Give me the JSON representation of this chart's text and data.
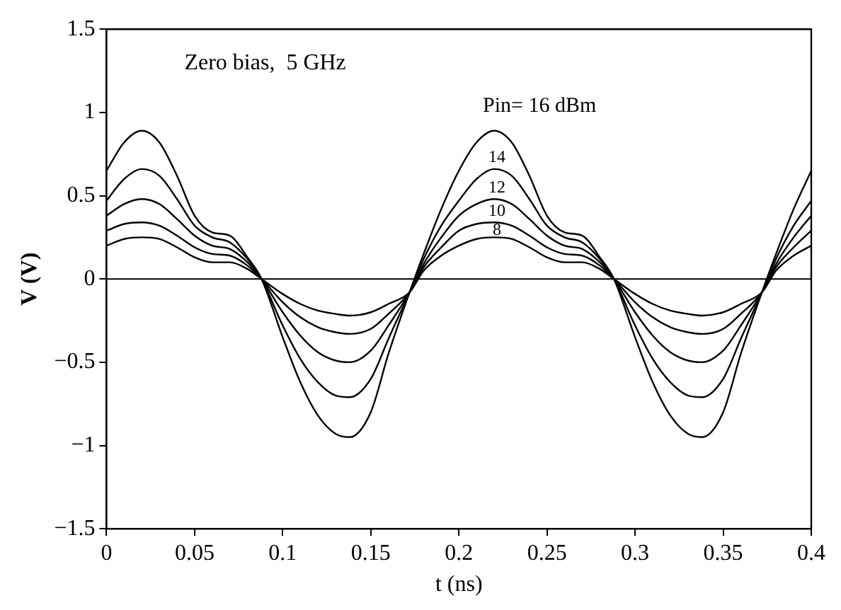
{
  "chart_data": {
    "type": "line",
    "xlabel": "t (ns)",
    "ylabel": "V (V)",
    "annotations": [
      "Zero bias,  5 GHz"
    ],
    "x": [
      0,
      0.01,
      0.02,
      0.03,
      0.04,
      0.05,
      0.06,
      0.07,
      0.08,
      0.088,
      0.1,
      0.11,
      0.12,
      0.13,
      0.138,
      0.15,
      0.16,
      0.172,
      0.18,
      0.19,
      0.2,
      0.21,
      0.22,
      0.23,
      0.24,
      0.25,
      0.26,
      0.27,
      0.28,
      0.288,
      0.3,
      0.31,
      0.32,
      0.33,
      0.338,
      0.35,
      0.36,
      0.372,
      0.38,
      0.39,
      0.4
    ],
    "series": [
      {
        "name": "Pin= 16 dBm",
        "color": "#000000",
        "values": [
          0.65,
          0.82,
          0.89,
          0.82,
          0.62,
          0.38,
          0.28,
          0.26,
          0.13,
          0,
          -0.35,
          -0.62,
          -0.82,
          -0.93,
          -0.95,
          -0.8,
          -0.45,
          -0.08,
          0.15,
          0.42,
          0.65,
          0.82,
          0.89,
          0.82,
          0.62,
          0.38,
          0.28,
          0.26,
          0.13,
          0,
          -0.35,
          -0.62,
          -0.82,
          -0.93,
          -0.95,
          -0.8,
          -0.45,
          -0.08,
          0.15,
          0.42,
          0.65
        ]
      },
      {
        "name": "14",
        "color": "#000000",
        "values": [
          0.47,
          0.6,
          0.66,
          0.62,
          0.48,
          0.32,
          0.25,
          0.22,
          0.12,
          0,
          -0.28,
          -0.48,
          -0.62,
          -0.7,
          -0.71,
          -0.6,
          -0.36,
          -0.08,
          0.12,
          0.32,
          0.47,
          0.6,
          0.66,
          0.62,
          0.48,
          0.32,
          0.25,
          0.22,
          0.12,
          0,
          -0.28,
          -0.48,
          -0.62,
          -0.7,
          -0.71,
          -0.6,
          -0.36,
          -0.08,
          0.12,
          0.32,
          0.47
        ]
      },
      {
        "name": "12",
        "color": "#000000",
        "values": [
          0.38,
          0.45,
          0.48,
          0.45,
          0.36,
          0.26,
          0.2,
          0.18,
          0.1,
          0,
          -0.2,
          -0.34,
          -0.44,
          -0.49,
          -0.5,
          -0.43,
          -0.28,
          -0.08,
          0.09,
          0.25,
          0.38,
          0.45,
          0.48,
          0.45,
          0.36,
          0.26,
          0.2,
          0.18,
          0.1,
          0,
          -0.2,
          -0.34,
          -0.44,
          -0.49,
          -0.5,
          -0.43,
          -0.28,
          -0.08,
          0.09,
          0.25,
          0.38
        ]
      },
      {
        "name": "10",
        "color": "#000000",
        "values": [
          0.29,
          0.33,
          0.34,
          0.32,
          0.26,
          0.19,
          0.15,
          0.14,
          0.08,
          0,
          -0.14,
          -0.23,
          -0.29,
          -0.32,
          -0.33,
          -0.3,
          -0.21,
          -0.08,
          0.07,
          0.19,
          0.29,
          0.33,
          0.34,
          0.32,
          0.26,
          0.19,
          0.15,
          0.14,
          0.08,
          0,
          -0.14,
          -0.23,
          -0.29,
          -0.32,
          -0.33,
          -0.3,
          -0.21,
          -0.08,
          0.07,
          0.19,
          0.29
        ]
      },
      {
        "name": "8",
        "color": "#000000",
        "values": [
          0.2,
          0.24,
          0.25,
          0.24,
          0.19,
          0.13,
          0.1,
          0.1,
          0.06,
          0,
          -0.09,
          -0.15,
          -0.19,
          -0.21,
          -0.22,
          -0.2,
          -0.15,
          -0.08,
          0.05,
          0.14,
          0.2,
          0.24,
          0.25,
          0.24,
          0.19,
          0.13,
          0.1,
          0.1,
          0.06,
          0,
          -0.09,
          -0.15,
          -0.19,
          -0.21,
          -0.22,
          -0.2,
          -0.15,
          -0.08,
          0.05,
          0.14,
          0.2
        ]
      }
    ],
    "xlim": [
      0,
      0.4
    ],
    "xticks": [
      0,
      0.05,
      0.1,
      0.15,
      0.2,
      0.25,
      0.3,
      0.35,
      0.4
    ],
    "ylim": [
      -1.5,
      1.5
    ],
    "yticks": [
      -1.5,
      -1,
      -0.5,
      0,
      0.5,
      1,
      1.5
    ],
    "ref_lines": [
      {
        "axis": "y",
        "value": 0,
        "color": "#000000"
      }
    ],
    "grid": false,
    "legend": false,
    "marker": "none",
    "line_style": "solid"
  }
}
